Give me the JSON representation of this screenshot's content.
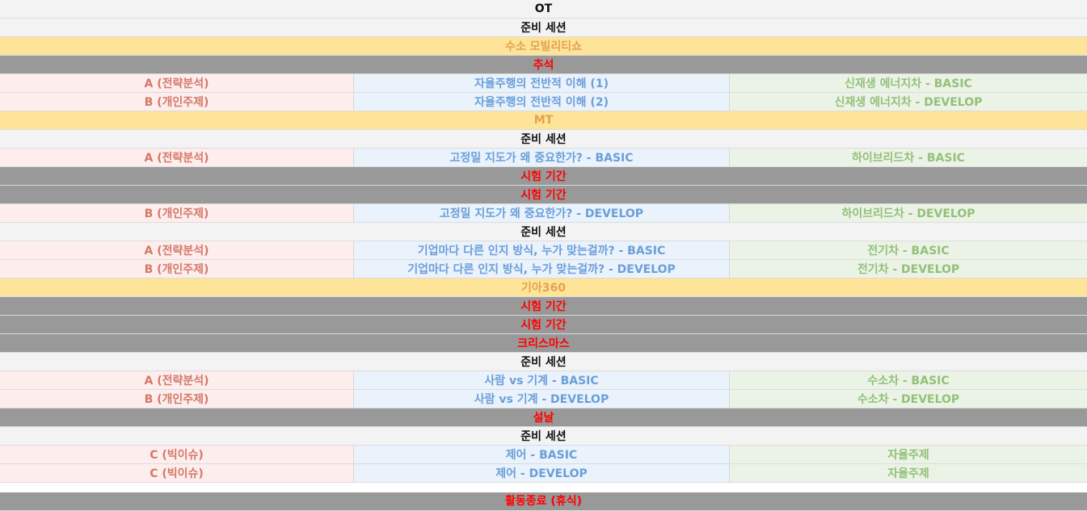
{
  "rows": [
    {
      "type": "header",
      "text": "OT"
    },
    {
      "type": "session",
      "text": "준비 세션"
    },
    {
      "type": "event",
      "text": "수소 모빌리티쇼"
    },
    {
      "type": "holiday",
      "text": "추석"
    },
    {
      "type": "data",
      "cells": [
        "A (전략분석)",
        "자율주행의 전반적 이해 (1)",
        "신재생 에너지차 - BASIC"
      ]
    },
    {
      "type": "data",
      "cells": [
        "B (개인주제)",
        "자율주행의 전반적 이해 (2)",
        "신재생 에너지차 - DEVELOP"
      ]
    },
    {
      "type": "event",
      "text": "MT"
    },
    {
      "type": "session",
      "text": "준비 세션"
    },
    {
      "type": "data",
      "cells": [
        "A (전략분석)",
        "고정밀 지도가 왜 중요한가? - BASIC",
        "하이브리드차 - BASIC"
      ]
    },
    {
      "type": "holiday",
      "text": "시험 기간"
    },
    {
      "type": "holiday",
      "text": "시험 기간"
    },
    {
      "type": "data",
      "cells": [
        "B (개인주제)",
        "고정밀 지도가 왜 중요한가? - DEVELOP",
        "하이브리드차 - DEVELOP"
      ]
    },
    {
      "type": "session",
      "text": "준비 세션"
    },
    {
      "type": "data",
      "cells": [
        "A (전략분석)",
        "기업마다 다른 인지 방식, 누가 맞는걸까? - BASIC",
        "전기차 - BASIC"
      ]
    },
    {
      "type": "data",
      "cells": [
        "B (개인주제)",
        "기업마다 다른 인지 방식, 누가 맞는걸까? - DEVELOP",
        "전기차 - DEVELOP"
      ]
    },
    {
      "type": "event",
      "text": "기아360"
    },
    {
      "type": "holiday",
      "text": "시험 기간"
    },
    {
      "type": "holiday",
      "text": "시험 기간"
    },
    {
      "type": "holiday",
      "text": "크리스마스"
    },
    {
      "type": "session",
      "text": "준비 세션"
    },
    {
      "type": "data",
      "cells": [
        "A (전략분석)",
        "사람 vs 기계 - BASIC",
        "수소차 - BASIC"
      ]
    },
    {
      "type": "data",
      "cells": [
        "B (개인주제)",
        "사람 vs 기계 - DEVELOP",
        "수소차 - DEVELOP"
      ]
    },
    {
      "type": "holiday",
      "text": "설날"
    },
    {
      "type": "session",
      "text": "준비 세션"
    },
    {
      "type": "data",
      "cells": [
        "C (빅이슈)",
        "제어 - BASIC",
        "자율주제"
      ]
    },
    {
      "type": "data",
      "cells": [
        "C (빅이슈)",
        "제어 - DEVELOP",
        "자율주제"
      ]
    },
    {
      "type": "holiday",
      "text": "활동종료 (휴식)",
      "tall": true
    }
  ]
}
